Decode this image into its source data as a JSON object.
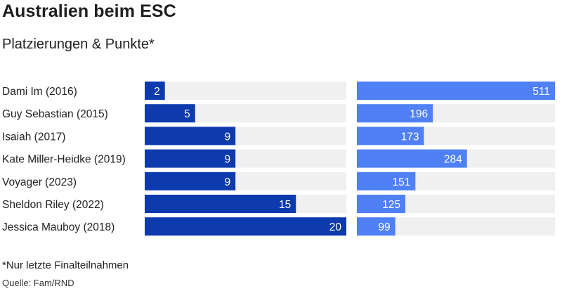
{
  "title": "Australien beim ESC",
  "subtitle": "Platzierungen & Punkte*",
  "footnote": "*Nur letzte Finalteilnahmen",
  "source": "Quelle: Fam/RND",
  "colors": {
    "placement_bar": "#0d3aad",
    "points_bar": "#4f80f5",
    "track": "#f0f0f0",
    "label_text": "#ffffff"
  },
  "chart_data": {
    "type": "bar",
    "orientation": "horizontal",
    "categories": [
      "Dami Im (2016)",
      "Guy Sebastian (2015)",
      "Isaiah (2017)",
      "Kate Miller-Heidke (2019)",
      "Voyager (2023)",
      "Sheldon Riley (2022)",
      "Jessica Mauboy (2018)"
    ],
    "series": [
      {
        "values": [
          2,
          5,
          9,
          9,
          9,
          15,
          20
        ],
        "xlim": [
          0,
          20
        ]
      },
      {
        "values": [
          511,
          196,
          173,
          284,
          151,
          125,
          99
        ],
        "xlim": [
          0,
          511
        ]
      }
    ],
    "grid": false,
    "legend": "none"
  }
}
